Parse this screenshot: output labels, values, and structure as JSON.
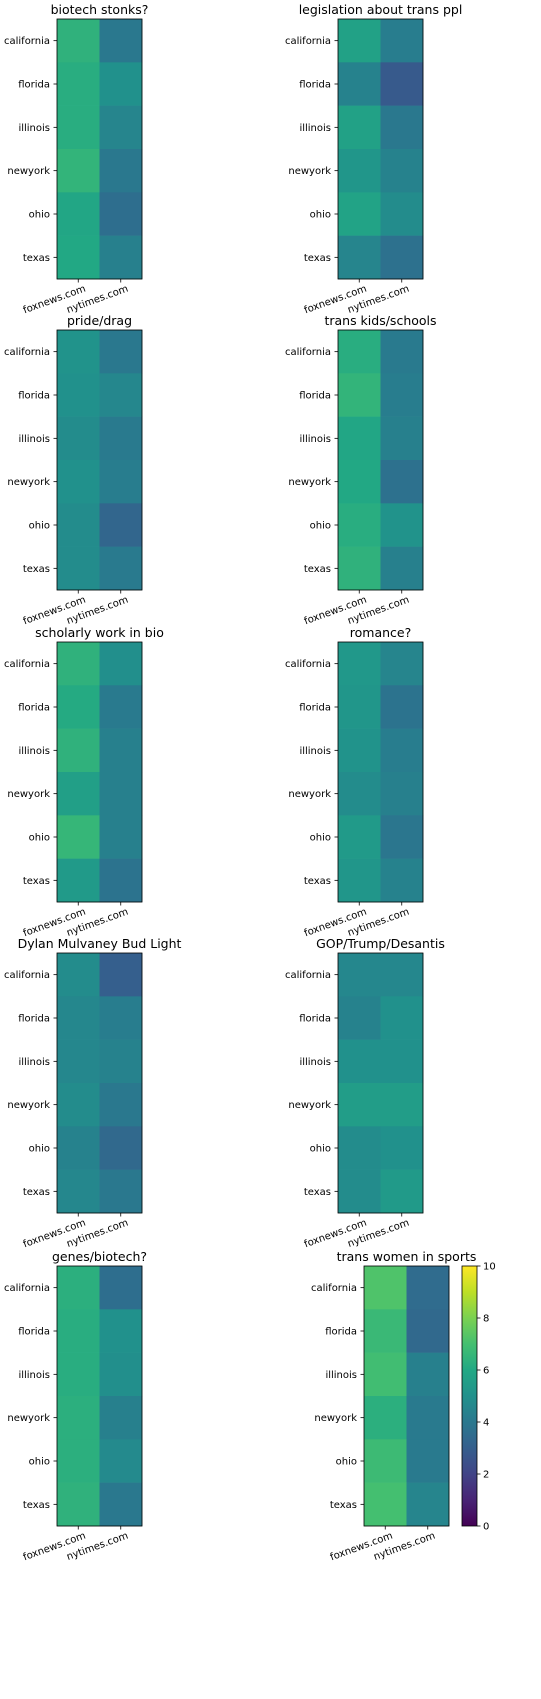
{
  "chart_data": [
    {
      "type": "heatmap",
      "title": "biotech stonks?",
      "x_categories": [
        "foxnews.com",
        "nytimes.com"
      ],
      "y_categories": [
        "california",
        "florida",
        "illinois",
        "newyork",
        "ohio",
        "texas"
      ],
      "values": [
        [
          6.4,
          4.0
        ],
        [
          6.2,
          5.0
        ],
        [
          6.2,
          4.5
        ],
        [
          6.5,
          4.0
        ],
        [
          5.9,
          3.6
        ],
        [
          6.0,
          4.3
        ]
      ],
      "color_range": [
        0,
        10
      ],
      "colormap": "viridis"
    },
    {
      "type": "heatmap",
      "title": "legislation about trans ppl",
      "x_categories": [
        "foxnews.com",
        "nytimes.com"
      ],
      "y_categories": [
        "california",
        "florida",
        "illinois",
        "newyork",
        "ohio",
        "texas"
      ],
      "values": [
        [
          5.7,
          4.2
        ],
        [
          4.4,
          2.8
        ],
        [
          5.7,
          4.0
        ],
        [
          5.2,
          4.4
        ],
        [
          5.8,
          4.8
        ],
        [
          4.5,
          3.7
        ]
      ],
      "color_range": [
        0,
        10
      ],
      "colormap": "viridis"
    },
    {
      "type": "heatmap",
      "title": "pride/drag",
      "x_categories": [
        "foxnews.com",
        "nytimes.com"
      ],
      "y_categories": [
        "california",
        "florida",
        "illinois",
        "newyork",
        "ohio",
        "texas"
      ],
      "values": [
        [
          5.1,
          4.0
        ],
        [
          5.0,
          4.6
        ],
        [
          4.8,
          4.1
        ],
        [
          5.0,
          4.2
        ],
        [
          4.8,
          3.3
        ],
        [
          4.8,
          4.1
        ]
      ],
      "color_range": [
        0,
        10
      ],
      "colormap": "viridis"
    },
    {
      "type": "heatmap",
      "title": "trans kids/schools",
      "x_categories": [
        "foxnews.com",
        "nytimes.com"
      ],
      "y_categories": [
        "california",
        "florida",
        "illinois",
        "newyork",
        "ohio",
        "texas"
      ],
      "values": [
        [
          6.2,
          4.1
        ],
        [
          6.5,
          4.2
        ],
        [
          5.9,
          4.3
        ],
        [
          6.0,
          3.7
        ],
        [
          6.2,
          5.1
        ],
        [
          6.4,
          4.3
        ]
      ],
      "color_range": [
        0,
        10
      ],
      "colormap": "viridis"
    },
    {
      "type": "heatmap",
      "title": "scholarly work in bio",
      "x_categories": [
        "foxnews.com",
        "nytimes.com"
      ],
      "y_categories": [
        "california",
        "florida",
        "illinois",
        "newyork",
        "ohio",
        "texas"
      ],
      "values": [
        [
          6.4,
          4.9
        ],
        [
          6.1,
          4.1
        ],
        [
          6.4,
          4.3
        ],
        [
          5.6,
          4.3
        ],
        [
          6.6,
          4.3
        ],
        [
          5.4,
          3.8
        ]
      ],
      "color_range": [
        0,
        10
      ],
      "colormap": "viridis"
    },
    {
      "type": "heatmap",
      "title": "romance?",
      "x_categories": [
        "foxnews.com",
        "nytimes.com"
      ],
      "y_categories": [
        "california",
        "florida",
        "illinois",
        "newyork",
        "ohio",
        "texas"
      ],
      "values": [
        [
          5.3,
          4.5
        ],
        [
          5.2,
          3.8
        ],
        [
          5.1,
          4.2
        ],
        [
          4.8,
          4.3
        ],
        [
          5.4,
          3.9
        ],
        [
          5.2,
          4.4
        ]
      ],
      "color_range": [
        0,
        10
      ],
      "colormap": "viridis"
    },
    {
      "type": "heatmap",
      "title": "Dylan Mulvaney Bud Light",
      "x_categories": [
        "foxnews.com",
        "nytimes.com"
      ],
      "y_categories": [
        "california",
        "florida",
        "illinois",
        "newyork",
        "ohio",
        "texas"
      ],
      "values": [
        [
          4.8,
          3.0
        ],
        [
          4.6,
          4.2
        ],
        [
          4.6,
          4.4
        ],
        [
          4.8,
          4.0
        ],
        [
          4.4,
          3.4
        ],
        [
          4.6,
          4.0
        ]
      ],
      "color_range": [
        0,
        10
      ],
      "colormap": "viridis"
    },
    {
      "type": "heatmap",
      "title": "GOP/Trump/Desantis",
      "x_categories": [
        "foxnews.com",
        "nytimes.com"
      ],
      "y_categories": [
        "california",
        "florida",
        "illinois",
        "newyork",
        "ohio",
        "texas"
      ],
      "values": [
        [
          4.6,
          4.6
        ],
        [
          4.4,
          5.0
        ],
        [
          5.0,
          5.0
        ],
        [
          5.5,
          5.5
        ],
        [
          4.8,
          5.0
        ],
        [
          4.8,
          5.4
        ]
      ],
      "color_range": [
        0,
        10
      ],
      "colormap": "viridis"
    },
    {
      "type": "heatmap",
      "title": "genes/biotech?",
      "x_categories": [
        "foxnews.com",
        "nytimes.com"
      ],
      "y_categories": [
        "california",
        "florida",
        "illinois",
        "newyork",
        "ohio",
        "texas"
      ],
      "values": [
        [
          6.3,
          3.6
        ],
        [
          6.2,
          5.0
        ],
        [
          6.2,
          4.9
        ],
        [
          6.3,
          4.3
        ],
        [
          6.3,
          4.7
        ],
        [
          6.4,
          4.0
        ]
      ],
      "color_range": [
        0,
        10
      ],
      "colormap": "viridis"
    },
    {
      "type": "heatmap",
      "title": "trans women in sports",
      "x_categories": [
        "foxnews.com",
        "nytimes.com"
      ],
      "y_categories": [
        "california",
        "florida",
        "illinois",
        "newyork",
        "ohio",
        "texas"
      ],
      "values": [
        [
          7.2,
          3.5
        ],
        [
          6.7,
          3.4
        ],
        [
          6.9,
          4.3
        ],
        [
          6.3,
          4.1
        ],
        [
          6.8,
          4.1
        ],
        [
          7.0,
          4.5
        ]
      ],
      "color_range": [
        0,
        10
      ],
      "colormap": "viridis"
    }
  ],
  "colorbar": {
    "range": [
      0,
      10
    ],
    "ticks": [
      "0",
      "2",
      "4",
      "6",
      "8",
      "10"
    ]
  }
}
